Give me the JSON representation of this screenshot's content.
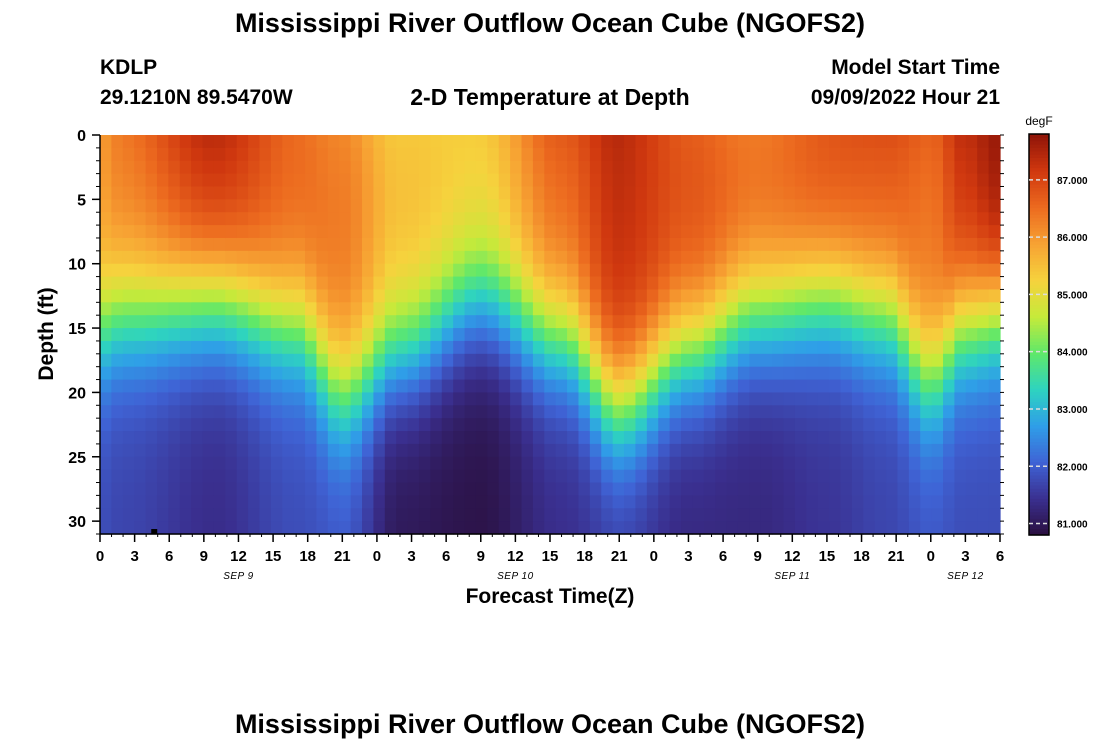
{
  "page": {
    "title": "Mississippi River Outflow Ocean Cube (NGOFS2)",
    "station": "KDLP",
    "coords": "29.1210N  89.5470W",
    "plot_title": "2-D Temperature at Depth",
    "start_label": "Model Start Time",
    "start_time": "09/09/2022 Hour 21",
    "footer_title": "Mississippi River Outflow Ocean Cube (NGOFS2)"
  },
  "chart_data": {
    "type": "heatmap",
    "title": "2-D Temperature at Depth",
    "xlabel": "Forecast Time(Z)",
    "ylabel": "Depth (ft)",
    "x_ticks": [
      "0",
      "3",
      "6",
      "9",
      "12",
      "15",
      "18",
      "21",
      "0",
      "3",
      "6",
      "9",
      "12",
      "15",
      "18",
      "21",
      "0",
      "3",
      "6",
      "9",
      "12",
      "15",
      "18",
      "21",
      "0",
      "3",
      "6"
    ],
    "x_range_hours": [
      0,
      78
    ],
    "date_labels": [
      {
        "text": "SEP 9",
        "hour": 12
      },
      {
        "text": "SEP 10",
        "hour": 36
      },
      {
        "text": "SEP 11",
        "hour": 60
      },
      {
        "text": "SEP 12",
        "hour": 75
      }
    ],
    "y_ticks": [
      0,
      5,
      10,
      15,
      20,
      25,
      30
    ],
    "ylim": [
      0,
      31
    ],
    "y_inverted": true,
    "colorbar": {
      "unit": "degF",
      "min": 80.8,
      "max": 87.8,
      "ticks": [
        "81.000",
        "82.000",
        "83.000",
        "84.000",
        "85.000",
        "86.000",
        "87.000"
      ],
      "colors": [
        "#2a0f3e",
        "#3a2f8f",
        "#3f63d5",
        "#2f9ee8",
        "#2ed3c0",
        "#5fe86a",
        "#c6ea3a",
        "#f6d23d",
        "#f7a233",
        "#ec6a1f",
        "#d0380f",
        "#8f1408"
      ]
    },
    "field": {
      "time_nodes_hours": [
        0,
        2,
        10,
        17,
        21,
        26,
        33,
        40,
        45,
        51,
        57,
        63,
        68,
        72,
        75,
        78
      ],
      "thermocline_depth_ft": [
        15,
        14,
        13,
        15,
        20,
        17,
        13,
        16,
        21,
        17,
        14,
        13,
        14,
        19,
        15,
        14
      ],
      "surface_temp_degF": [
        86.0,
        86.3,
        87.2,
        86.6,
        86.4,
        85.6,
        85.3,
        86.5,
        87.3,
        86.9,
        86.6,
        86.8,
        86.7,
        86.4,
        87.2,
        87.7
      ],
      "bottom_temp_degF": [
        81.8,
        81.7,
        81.4,
        81.8,
        81.9,
        81.0,
        80.9,
        81.4,
        81.6,
        81.3,
        81.3,
        81.5,
        81.7,
        81.9,
        81.8,
        81.8
      ]
    }
  }
}
